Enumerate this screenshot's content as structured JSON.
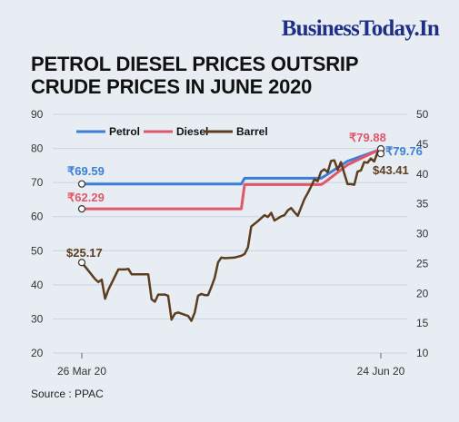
{
  "brand": "BusinessToday.In",
  "title_line1": "PETROL DIESEL PRICES OUTSRIP",
  "title_line2": "CRUDE PRICES IN JUNE 2020",
  "source_label": "Source : PPAC",
  "colors": {
    "petrol": "#3b7fd8",
    "diesel": "#e2566a",
    "barrel": "#5c3e1f",
    "grid": "#c8d4e0",
    "background": "#e7edf3"
  },
  "chart_data": {
    "type": "line",
    "x_start_label": "26 Mar 20",
    "x_end_label": "24 Jun 20",
    "x_range": [
      "2020-03-26",
      "2020-06-24"
    ],
    "y_left_ticks": [
      20,
      30,
      40,
      50,
      60,
      70,
      80,
      90
    ],
    "y_right_ticks": [
      10,
      15,
      20,
      25,
      30,
      35,
      40,
      45,
      50
    ],
    "ylim_left": [
      20,
      90
    ],
    "ylim_right": [
      10,
      50
    ],
    "legend": [
      "Petrol",
      "Diesel",
      "Barrel"
    ],
    "legend_position": "top-left",
    "grid": true,
    "series": [
      {
        "name": "Petrol",
        "axis": "left",
        "start_label": "₹69.59",
        "end_label": "₹79.76",
        "points": [
          [
            "2020-03-26",
            69.59
          ],
          [
            "2020-05-13",
            69.59
          ],
          [
            "2020-05-14",
            71.26
          ],
          [
            "2020-06-06",
            71.26
          ],
          [
            "2020-06-07",
            71.86
          ],
          [
            "2020-06-14",
            76.26
          ],
          [
            "2020-06-24",
            79.76
          ]
        ]
      },
      {
        "name": "Diesel",
        "axis": "left",
        "start_label": "₹62.29",
        "end_label": "₹79.88",
        "points": [
          [
            "2020-03-26",
            62.29
          ],
          [
            "2020-05-13",
            62.29
          ],
          [
            "2020-05-14",
            69.39
          ],
          [
            "2020-06-06",
            69.39
          ],
          [
            "2020-06-07",
            69.99
          ],
          [
            "2020-06-14",
            75.19
          ],
          [
            "2020-06-24",
            79.88
          ]
        ]
      },
      {
        "name": "Barrel",
        "axis": "right",
        "start_label": "$25.17",
        "end_label": "$43.41",
        "points": [
          [
            "2020-03-26",
            25.17
          ],
          [
            "2020-03-28",
            23.8
          ],
          [
            "2020-03-30",
            22.4
          ],
          [
            "2020-03-31",
            21.9
          ],
          [
            "2020-04-01",
            22.3
          ],
          [
            "2020-04-02",
            19.1
          ],
          [
            "2020-04-03",
            20.6
          ],
          [
            "2020-04-06",
            24.0
          ],
          [
            "2020-04-08",
            24.0
          ],
          [
            "2020-04-09",
            24.1
          ],
          [
            "2020-04-10",
            23.2
          ],
          [
            "2020-04-13",
            23.2
          ],
          [
            "2020-04-15",
            23.2
          ],
          [
            "2020-04-16",
            19.0
          ],
          [
            "2020-04-17",
            18.6
          ],
          [
            "2020-04-18",
            19.8
          ],
          [
            "2020-04-20",
            19.8
          ],
          [
            "2020-04-21",
            19.6
          ],
          [
            "2020-04-22",
            15.6
          ],
          [
            "2020-04-23",
            16.6
          ],
          [
            "2020-04-24",
            16.8
          ],
          [
            "2020-04-27",
            16.2
          ],
          [
            "2020-04-28",
            15.4
          ],
          [
            "2020-04-29",
            16.8
          ],
          [
            "2020-04-30",
            19.6
          ],
          [
            "2020-05-01",
            19.9
          ],
          [
            "2020-05-02",
            19.7
          ],
          [
            "2020-05-03",
            19.7
          ],
          [
            "2020-05-04",
            21.1
          ],
          [
            "2020-05-05",
            22.6
          ],
          [
            "2020-05-06",
            25.2
          ],
          [
            "2020-05-07",
            26.0
          ],
          [
            "2020-05-08",
            25.9
          ],
          [
            "2020-05-11",
            26.0
          ],
          [
            "2020-05-13",
            26.3
          ],
          [
            "2020-05-14",
            26.6
          ],
          [
            "2020-05-15",
            27.7
          ],
          [
            "2020-05-16",
            31.2
          ],
          [
            "2020-05-18",
            32.1
          ],
          [
            "2020-05-20",
            33.1
          ],
          [
            "2020-05-21",
            32.8
          ],
          [
            "2020-05-22",
            33.5
          ],
          [
            "2020-05-23",
            32.2
          ],
          [
            "2020-05-25",
            32.9
          ],
          [
            "2020-05-26",
            33.1
          ],
          [
            "2020-05-27",
            33.9
          ],
          [
            "2020-05-28",
            34.3
          ],
          [
            "2020-05-29",
            33.6
          ],
          [
            "2020-05-30",
            33.0
          ],
          [
            "2020-06-01",
            35.8
          ],
          [
            "2020-06-02",
            36.8
          ],
          [
            "2020-06-03",
            37.9
          ],
          [
            "2020-06-04",
            39.1
          ],
          [
            "2020-06-05",
            38.8
          ],
          [
            "2020-06-06",
            40.4
          ],
          [
            "2020-06-07",
            40.8
          ],
          [
            "2020-06-08",
            40.3
          ],
          [
            "2020-06-09",
            42.2
          ],
          [
            "2020-06-10",
            42.3
          ],
          [
            "2020-06-11",
            40.7
          ],
          [
            "2020-06-12",
            42.0
          ],
          [
            "2020-06-13",
            40.1
          ],
          [
            "2020-06-14",
            38.3
          ],
          [
            "2020-06-15",
            38.3
          ],
          [
            "2020-06-16",
            38.2
          ],
          [
            "2020-06-17",
            40.4
          ],
          [
            "2020-06-18",
            40.6
          ],
          [
            "2020-06-19",
            42.0
          ],
          [
            "2020-06-20",
            41.9
          ],
          [
            "2020-06-21",
            42.6
          ],
          [
            "2020-06-22",
            42.1
          ],
          [
            "2020-06-23",
            43.6
          ],
          [
            "2020-06-24",
            43.41
          ]
        ]
      }
    ]
  }
}
